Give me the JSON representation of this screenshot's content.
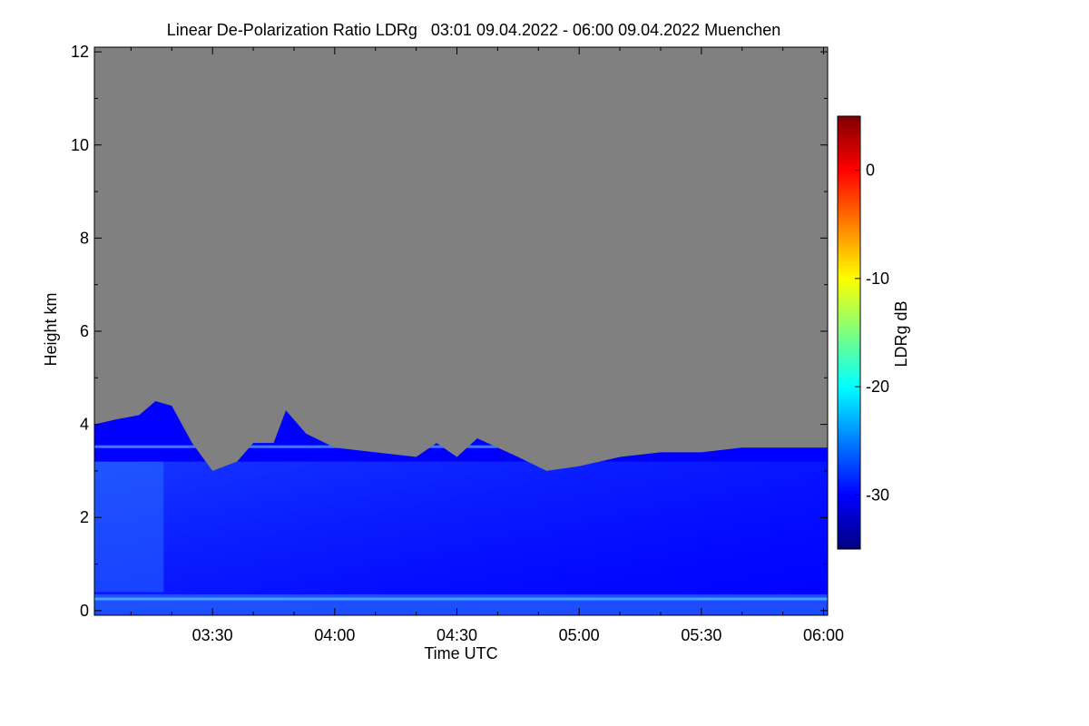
{
  "chart_data": {
    "type": "heatmap",
    "title": "Linear De-Polarization Ratio LDRg   03:01 09.04.2022 - 06:00 09.04.2022 Muenchen",
    "xlabel": "Time UTC",
    "ylabel": "Height km",
    "colorbar_label": "LDRg dB",
    "xlim": [
      "03:01",
      "06:01"
    ],
    "ylim": [
      -0.1,
      12.1
    ],
    "x_ticks": [
      "03:30",
      "04:00",
      "04:30",
      "05:00",
      "05:30",
      "06:00"
    ],
    "x_tick_values_min": [
      210,
      240,
      270,
      300,
      330,
      360
    ],
    "y_ticks": [
      0,
      2,
      4,
      6,
      8,
      10,
      12
    ],
    "colorbar_ticks": [
      0,
      -10,
      -20,
      -30
    ],
    "colorbar_range": [
      -35,
      5
    ],
    "no_signal_color": "#808080",
    "colormap": [
      "#00007f",
      "#0000ff",
      "#007fff",
      "#00ffff",
      "#7fff7f",
      "#ffff00",
      "#ff7f00",
      "#ff0000",
      "#7f0000"
    ],
    "typical_ldr_db": -30,
    "signal_top_km": [
      {
        "time": "03:01",
        "km": 4.0
      },
      {
        "time": "03:06",
        "km": 4.1
      },
      {
        "time": "03:12",
        "km": 4.2
      },
      {
        "time": "03:16",
        "km": 4.5
      },
      {
        "time": "03:20",
        "km": 4.4
      },
      {
        "time": "03:25",
        "km": 3.6
      },
      {
        "time": "03:30",
        "km": 3.0
      },
      {
        "time": "03:36",
        "km": 3.2
      },
      {
        "time": "03:40",
        "km": 3.6
      },
      {
        "time": "03:45",
        "km": 3.6
      },
      {
        "time": "03:48",
        "km": 4.3
      },
      {
        "time": "03:53",
        "km": 3.8
      },
      {
        "time": "04:00",
        "km": 3.5
      },
      {
        "time": "04:10",
        "km": 3.4
      },
      {
        "time": "04:20",
        "km": 3.3
      },
      {
        "time": "04:25",
        "km": 3.6
      },
      {
        "time": "04:30",
        "km": 3.3
      },
      {
        "time": "04:35",
        "km": 3.7
      },
      {
        "time": "04:40",
        "km": 3.5
      },
      {
        "time": "04:45",
        "km": 3.3
      },
      {
        "time": "04:52",
        "km": 3.0
      },
      {
        "time": "05:00",
        "km": 3.1
      },
      {
        "time": "05:10",
        "km": 3.3
      },
      {
        "time": "05:20",
        "km": 3.4
      },
      {
        "time": "05:30",
        "km": 3.4
      },
      {
        "time": "05:40",
        "km": 3.5
      },
      {
        "time": "05:50",
        "km": 3.5
      },
      {
        "time": "06:01",
        "km": 3.5
      }
    ]
  }
}
